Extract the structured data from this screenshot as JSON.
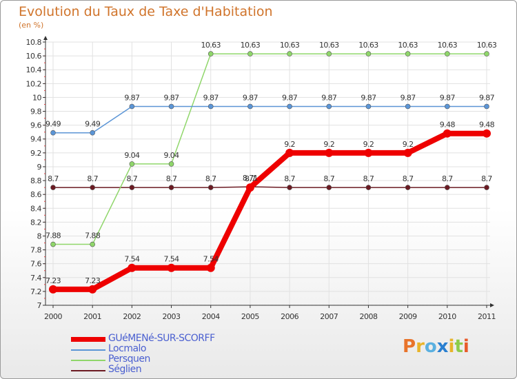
{
  "chart_data": {
    "type": "line",
    "title": "Evolution du Taux de Taxe d'Habitation",
    "subtitle": "(en %)",
    "x": [
      "2000",
      "2001",
      "2002",
      "2003",
      "2004",
      "2005",
      "2006",
      "2007",
      "2008",
      "2009",
      "2010",
      "2011"
    ],
    "ylim": [
      7,
      10.8
    ],
    "yticks": [
      "7",
      "7.2",
      "7.4",
      "7.6",
      "7.8",
      "8",
      "8.2",
      "8.4",
      "8.6",
      "8.8",
      "9",
      "9.2",
      "9.4",
      "9.6",
      "9.8",
      "10",
      "10.2",
      "10.4",
      "10.6",
      "10.8"
    ],
    "series": [
      {
        "name": "Séglien",
        "color": "#6b1a22",
        "values": [
          8.7,
          8.7,
          8.7,
          8.7,
          8.7,
          8.71,
          8.7,
          8.7,
          8.7,
          8.7,
          8.7,
          8.7
        ],
        "labels": [
          "8.7",
          "8.7",
          "8.7",
          "8.7",
          "8.7",
          "8.71",
          "8.7",
          "8.7",
          "8.7",
          "8.7",
          "8.7",
          "8.7"
        ]
      },
      {
        "name": "Persquen",
        "color": "#8fd66a",
        "values": [
          7.88,
          7.88,
          9.04,
          9.04,
          10.63,
          10.63,
          10.63,
          10.63,
          10.63,
          10.63,
          10.63,
          10.63
        ],
        "labels": [
          "7.88",
          "7.88",
          "9.04",
          "9.04",
          "10.63",
          "10.63",
          "10.63",
          "10.63",
          "10.63",
          "10.63",
          "10.63",
          "10.63"
        ]
      },
      {
        "name": "Locmalo",
        "color": "#5b95d6",
        "values": [
          9.49,
          9.49,
          9.87,
          9.87,
          9.87,
          9.87,
          9.87,
          9.87,
          9.87,
          9.87,
          9.87,
          9.87
        ],
        "labels": [
          "9.49",
          "9.49",
          "9.87",
          "9.87",
          "9.87",
          "9.87",
          "9.87",
          "9.87",
          "9.87",
          "9.87",
          "9.87",
          "9.87"
        ]
      },
      {
        "name": "GUéMENé-SUR-SCORFF",
        "color": "#ee0000",
        "values": [
          7.23,
          7.23,
          7.54,
          7.54,
          7.54,
          8.7,
          9.2,
          9.2,
          9.2,
          9.2,
          9.48,
          9.48
        ],
        "labels": [
          "7.23",
          "7.23",
          "7.54",
          "7.54",
          "7.54",
          "8.7",
          "9.2",
          "9.2",
          "9.2",
          "9.2",
          "9.48",
          "9.48"
        ]
      }
    ],
    "legend": [
      "GUéMENé-SUR-SCORFF",
      "Locmalo",
      "Persquen",
      "Séglien"
    ]
  },
  "logo": {
    "letters": [
      "P",
      "r",
      "o",
      "x",
      "i",
      "t",
      "i"
    ],
    "colors": [
      "#e8732a",
      "#e8b42a",
      "#5ab0e0",
      "#2a7fd0",
      "#e8b42a",
      "#8ccc4a",
      "#e85a2a"
    ]
  }
}
